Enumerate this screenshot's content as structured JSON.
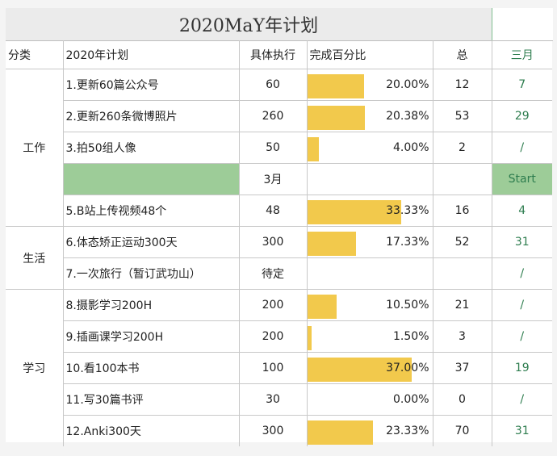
{
  "title": "2020MaY年计划",
  "headers": {
    "category": "分类",
    "plan": "2020年计划",
    "exec": "具体执行",
    "pct": "完成百分比",
    "total": "总",
    "month": "三月"
  },
  "categories": {
    "work": "工作",
    "life": "生活",
    "study": "学习"
  },
  "rows": [
    {
      "plan": "1.更新60篇公众号",
      "exec": "60",
      "pct": "20.00%",
      "pct_value": 20.0,
      "total": "12",
      "month": "7"
    },
    {
      "plan": "2.更新260条微博照片",
      "exec": "260",
      "pct": "20.38%",
      "pct_value": 20.38,
      "total": "53",
      "month": "29"
    },
    {
      "plan": "3.拍50组人像",
      "exec": "50",
      "pct": "4.00%",
      "pct_value": 4.0,
      "total": "2",
      "month": "/"
    },
    {
      "plan": "",
      "exec": "3月",
      "pct": "",
      "pct_value": 0,
      "total": "",
      "month": "Start"
    },
    {
      "plan": "5.B站上传视频48个",
      "exec": "48",
      "pct": "33.33%",
      "pct_value": 33.33,
      "total": "16",
      "month": "4"
    },
    {
      "plan": "6.体态矫正运动300天",
      "exec": "300",
      "pct": "17.33%",
      "pct_value": 17.33,
      "total": "52",
      "month": "31"
    },
    {
      "plan": "7.一次旅行（暂订武功山）",
      "exec": "待定",
      "pct": "",
      "pct_value": 0,
      "total": "",
      "month": "/"
    },
    {
      "plan": "8.摄影学习200H",
      "exec": "200",
      "pct": "10.50%",
      "pct_value": 10.5,
      "total": "21",
      "month": "/"
    },
    {
      "plan": "9.插画课学习200H",
      "exec": "200",
      "pct": "1.50%",
      "pct_value": 1.5,
      "total": "3",
      "month": "/"
    },
    {
      "plan": "10.看100本书",
      "exec": "100",
      "pct": "37.00%",
      "pct_value": 37.0,
      "total": "37",
      "month": "19"
    },
    {
      "plan": "11.写30篇书评",
      "exec": "30",
      "pct": "0.00%",
      "pct_value": 0.0,
      "total": "0",
      "month": "/"
    },
    {
      "plan": "12.Anki300天",
      "exec": "300",
      "pct": "23.33%",
      "pct_value": 23.33,
      "total": "70",
      "month": "31"
    }
  ],
  "colors": {
    "bar": "#f2c94c",
    "green_fill": "#9dcc98",
    "month_text": "#2e7d4f"
  }
}
